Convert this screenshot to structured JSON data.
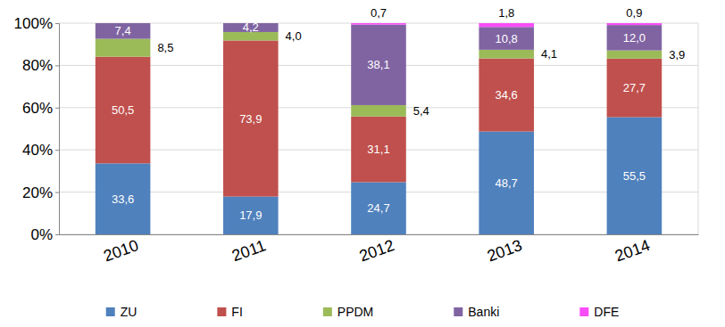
{
  "chart_data": {
    "type": "bar",
    "stacked": true,
    "data_labels": true,
    "grid": true,
    "legend": "bottom",
    "categories": [
      "2010",
      "2011",
      "2012",
      "2013",
      "2014"
    ],
    "ylim": [
      0,
      100
    ],
    "yticks": [
      {
        "value": 0,
        "label": "0%"
      },
      {
        "value": 20,
        "label": "20%"
      },
      {
        "value": 40,
        "label": "40%"
      },
      {
        "value": 60,
        "label": "60%"
      },
      {
        "value": 80,
        "label": "80%"
      },
      {
        "value": 100,
        "label": "100%"
      }
    ],
    "series": [
      {
        "name": "ZU",
        "color": "#4f81bd",
        "values": [
          33.6,
          17.9,
          24.7,
          48.7,
          55.5
        ],
        "value_labels": [
          "33,6",
          "17,9",
          "24,7",
          "48,7",
          "55,5"
        ]
      },
      {
        "name": "FI",
        "color": "#c0504d",
        "values": [
          50.5,
          73.9,
          31.1,
          34.6,
          27.7
        ],
        "value_labels": [
          "50,5",
          "73,9",
          "31,1",
          "34,6",
          "27,7"
        ]
      },
      {
        "name": "PPDM",
        "color": "#9bbb59",
        "values": [
          8.5,
          4.0,
          5.4,
          4.1,
          3.9
        ],
        "value_labels": [
          "8,5",
          "4,0",
          "5,4",
          "4,1",
          "3,9"
        ]
      },
      {
        "name": "Banki",
        "color": "#8064a2",
        "values": [
          7.4,
          4.2,
          38.1,
          10.8,
          12.0
        ],
        "value_labels": [
          "7,4",
          "4,2",
          "38,1",
          "10,8",
          "12,0"
        ]
      },
      {
        "name": "DFE",
        "color": "#f94df9",
        "values": [
          null,
          null,
          0.7,
          1.8,
          0.9
        ],
        "value_labels": [
          null,
          null,
          "0,7",
          "1,8",
          "0,9"
        ]
      }
    ]
  }
}
